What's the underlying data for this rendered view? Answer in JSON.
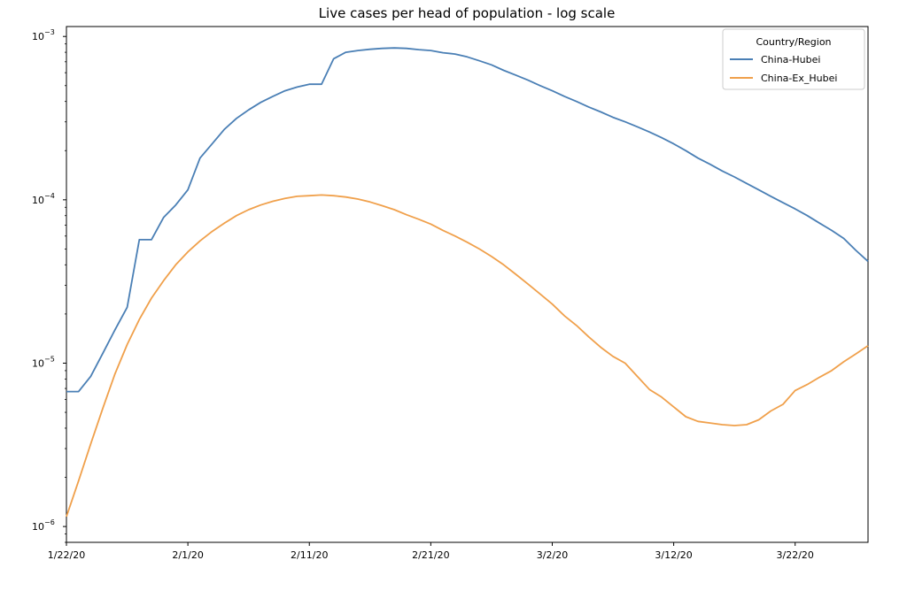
{
  "chart_data": {
    "type": "line",
    "title": "Live cases per head of population - log scale",
    "xlabel": "",
    "ylabel": "",
    "y_scale": "log",
    "ylim": [
      8e-07,
      0.00115
    ],
    "xlim": [
      "2020-01-22",
      "2020-03-28"
    ],
    "grid": false,
    "x_ticks": [
      {
        "date": "2020-01-22",
        "label": "1/22/20"
      },
      {
        "date": "2020-02-01",
        "label": "2/1/20"
      },
      {
        "date": "2020-02-11",
        "label": "2/11/20"
      },
      {
        "date": "2020-02-21",
        "label": "2/21/20"
      },
      {
        "date": "2020-03-02",
        "label": "3/2/20"
      },
      {
        "date": "2020-03-12",
        "label": "3/12/20"
      },
      {
        "date": "2020-03-22",
        "label": "3/22/20"
      }
    ],
    "y_ticks": [
      {
        "value": 1e-06,
        "base": "10",
        "exp": "−6"
      },
      {
        "value": 1e-05,
        "base": "10",
        "exp": "−5"
      },
      {
        "value": 0.0001,
        "base": "10",
        "exp": "−4"
      },
      {
        "value": 0.001,
        "base": "10",
        "exp": "−3"
      }
    ],
    "legend": {
      "title": "Country/Region",
      "position": "top-right"
    },
    "series": [
      {
        "name": "China-Hubei",
        "color": "#4a7fb5",
        "points": [
          [
            "2020-01-22",
            6.7e-06
          ],
          [
            "2020-01-23",
            6.7e-06
          ],
          [
            "2020-01-24",
            8.3e-06
          ],
          [
            "2020-01-25",
            1.15e-05
          ],
          [
            "2020-01-26",
            1.6e-05
          ],
          [
            "2020-01-27",
            2.2e-05
          ],
          [
            "2020-01-28",
            5.7e-05
          ],
          [
            "2020-01-29",
            5.7e-05
          ],
          [
            "2020-01-30",
            7.8e-05
          ],
          [
            "2020-01-31",
            9.3e-05
          ],
          [
            "2020-02-01",
            0.000115
          ],
          [
            "2020-02-02",
            0.00018
          ],
          [
            "2020-02-03",
            0.00022
          ],
          [
            "2020-02-04",
            0.00027
          ],
          [
            "2020-02-05",
            0.000315
          ],
          [
            "2020-02-06",
            0.000355
          ],
          [
            "2020-02-07",
            0.000395
          ],
          [
            "2020-02-08",
            0.00043
          ],
          [
            "2020-02-09",
            0.000465
          ],
          [
            "2020-02-10",
            0.00049
          ],
          [
            "2020-02-11",
            0.00051
          ],
          [
            "2020-02-12",
            0.00051
          ],
          [
            "2020-02-13",
            0.00073
          ],
          [
            "2020-02-14",
            0.0008
          ],
          [
            "2020-02-15",
            0.00082
          ],
          [
            "2020-02-16",
            0.000835
          ],
          [
            "2020-02-17",
            0.000845
          ],
          [
            "2020-02-18",
            0.00085
          ],
          [
            "2020-02-19",
            0.000845
          ],
          [
            "2020-02-20",
            0.00083
          ],
          [
            "2020-02-21",
            0.00082
          ],
          [
            "2020-02-22",
            0.000795
          ],
          [
            "2020-02-23",
            0.00078
          ],
          [
            "2020-02-24",
            0.00075
          ],
          [
            "2020-02-25",
            0.00071
          ],
          [
            "2020-02-26",
            0.00067
          ],
          [
            "2020-02-27",
            0.00062
          ],
          [
            "2020-02-28",
            0.00058
          ],
          [
            "2020-02-29",
            0.00054
          ],
          [
            "2020-03-01",
            0.0005
          ],
          [
            "2020-03-02",
            0.000465
          ],
          [
            "2020-03-03",
            0.00043
          ],
          [
            "2020-03-04",
            0.0004
          ],
          [
            "2020-03-05",
            0.00037
          ],
          [
            "2020-03-06",
            0.000345
          ],
          [
            "2020-03-07",
            0.00032
          ],
          [
            "2020-03-08",
            0.0003
          ],
          [
            "2020-03-09",
            0.00028
          ],
          [
            "2020-03-10",
            0.00026
          ],
          [
            "2020-03-11",
            0.00024
          ],
          [
            "2020-03-12",
            0.00022
          ],
          [
            "2020-03-13",
            0.0002
          ],
          [
            "2020-03-14",
            0.00018
          ],
          [
            "2020-03-15",
            0.000165
          ],
          [
            "2020-03-16",
            0.00015
          ],
          [
            "2020-03-17",
            0.000138
          ],
          [
            "2020-03-18",
            0.000126
          ],
          [
            "2020-03-19",
            0.000115
          ],
          [
            "2020-03-20",
            0.000105
          ],
          [
            "2020-03-21",
            9.6e-05
          ],
          [
            "2020-03-22",
            8.8e-05
          ],
          [
            "2020-03-23",
            8e-05
          ],
          [
            "2020-03-24",
            7.2e-05
          ],
          [
            "2020-03-25",
            6.5e-05
          ],
          [
            "2020-03-26",
            5.8e-05
          ],
          [
            "2020-03-27",
            4.9e-05
          ],
          [
            "2020-03-28",
            4.2e-05
          ]
        ]
      },
      {
        "name": "China-Ex_Hubei",
        "color": "#f0a04b",
        "points": [
          [
            "2020-01-22",
            1.15e-06
          ],
          [
            "2020-01-23",
            1.9e-06
          ],
          [
            "2020-01-24",
            3.2e-06
          ],
          [
            "2020-01-25",
            5.3e-06
          ],
          [
            "2020-01-26",
            8.6e-06
          ],
          [
            "2020-01-27",
            1.3e-05
          ],
          [
            "2020-01-28",
            1.85e-05
          ],
          [
            "2020-01-29",
            2.5e-05
          ],
          [
            "2020-01-30",
            3.2e-05
          ],
          [
            "2020-01-31",
            4e-05
          ],
          [
            "2020-02-01",
            4.8e-05
          ],
          [
            "2020-02-02",
            5.6e-05
          ],
          [
            "2020-02-03",
            6.4e-05
          ],
          [
            "2020-02-04",
            7.2e-05
          ],
          [
            "2020-02-05",
            8e-05
          ],
          [
            "2020-02-06",
            8.7e-05
          ],
          [
            "2020-02-07",
            9.3e-05
          ],
          [
            "2020-02-08",
            9.8e-05
          ],
          [
            "2020-02-09",
            0.000102
          ],
          [
            "2020-02-10",
            0.000105
          ],
          [
            "2020-02-11",
            0.000106
          ],
          [
            "2020-02-12",
            0.000107
          ],
          [
            "2020-02-13",
            0.000106
          ],
          [
            "2020-02-14",
            0.000104
          ],
          [
            "2020-02-15",
            0.000101
          ],
          [
            "2020-02-16",
            9.7e-05
          ],
          [
            "2020-02-17",
            9.2e-05
          ],
          [
            "2020-02-18",
            8.7e-05
          ],
          [
            "2020-02-19",
            8.1e-05
          ],
          [
            "2020-02-20",
            7.6e-05
          ],
          [
            "2020-02-21",
            7.1e-05
          ],
          [
            "2020-02-22",
            6.5e-05
          ],
          [
            "2020-02-23",
            6e-05
          ],
          [
            "2020-02-24",
            5.5e-05
          ],
          [
            "2020-02-25",
            5e-05
          ],
          [
            "2020-02-26",
            4.5e-05
          ],
          [
            "2020-02-27",
            4e-05
          ],
          [
            "2020-02-28",
            3.5e-05
          ],
          [
            "2020-02-29",
            3.05e-05
          ],
          [
            "2020-03-01",
            2.65e-05
          ],
          [
            "2020-03-02",
            2.3e-05
          ],
          [
            "2020-03-03",
            1.95e-05
          ],
          [
            "2020-03-04",
            1.7e-05
          ],
          [
            "2020-03-05",
            1.45e-05
          ],
          [
            "2020-03-06",
            1.25e-05
          ],
          [
            "2020-03-07",
            1.1e-05
          ],
          [
            "2020-03-08",
            1e-05
          ],
          [
            "2020-03-09",
            8.3e-06
          ],
          [
            "2020-03-10",
            6.9e-06
          ],
          [
            "2020-03-11",
            6.2e-06
          ],
          [
            "2020-03-12",
            5.4e-06
          ],
          [
            "2020-03-13",
            4.7e-06
          ],
          [
            "2020-03-14",
            4.4e-06
          ],
          [
            "2020-03-15",
            4.3e-06
          ],
          [
            "2020-03-16",
            4.2e-06
          ],
          [
            "2020-03-17",
            4.15e-06
          ],
          [
            "2020-03-18",
            4.2e-06
          ],
          [
            "2020-03-19",
            4.5e-06
          ],
          [
            "2020-03-20",
            5.1e-06
          ],
          [
            "2020-03-21",
            5.6e-06
          ],
          [
            "2020-03-22",
            6.8e-06
          ],
          [
            "2020-03-23",
            7.4e-06
          ],
          [
            "2020-03-24",
            8.2e-06
          ],
          [
            "2020-03-25",
            9e-06
          ],
          [
            "2020-03-26",
            1.02e-05
          ],
          [
            "2020-03-27",
            1.14e-05
          ],
          [
            "2020-03-28",
            1.28e-05
          ]
        ]
      }
    ]
  }
}
